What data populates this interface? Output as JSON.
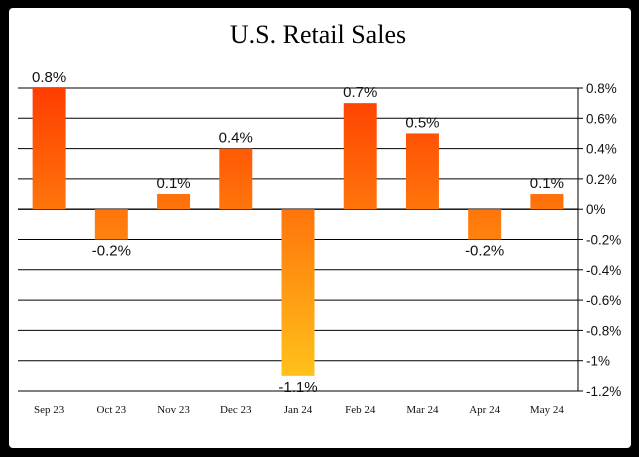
{
  "chart_data": {
    "type": "bar",
    "title": "U.S. Retail Sales",
    "xlabel": "",
    "ylabel": "",
    "categories": [
      "Sep 23",
      "Oct 23",
      "Nov 23",
      "Dec 23",
      "Jan 24",
      "Feb 24",
      "Mar 24",
      "Apr 24",
      "May 24"
    ],
    "values": [
      0.8,
      -0.2,
      0.1,
      0.4,
      -1.1,
      0.7,
      0.5,
      -0.2,
      0.1
    ],
    "data_labels": [
      "0.8%",
      "-0.2%",
      "0.1%",
      "0.4%",
      "-1.1%",
      "0.7%",
      "0.5%",
      "-0.2%",
      "0.1%"
    ],
    "ylim": [
      -1.2,
      0.8
    ],
    "yticks": [
      0.8,
      0.6,
      0.4,
      0.2,
      0,
      -0.2,
      -0.4,
      -0.6,
      -0.8,
      -1,
      -1.2
    ],
    "ytick_labels": [
      "0.8%",
      "0.6%",
      "0.4%",
      "0.2%",
      "0%",
      "-0.2%",
      "-0.4%",
      "-0.6%",
      "-0.8%",
      "-1%",
      "-1.2%"
    ],
    "y_axis_side": "right",
    "grid": true,
    "legend": false,
    "colors": {
      "bar_gradient_top": "#ff3d00",
      "bar_gradient_bottom": "#ffc21a",
      "grid": "#000000",
      "frame_background": "#ffffff",
      "outer_background": "#000000"
    }
  }
}
